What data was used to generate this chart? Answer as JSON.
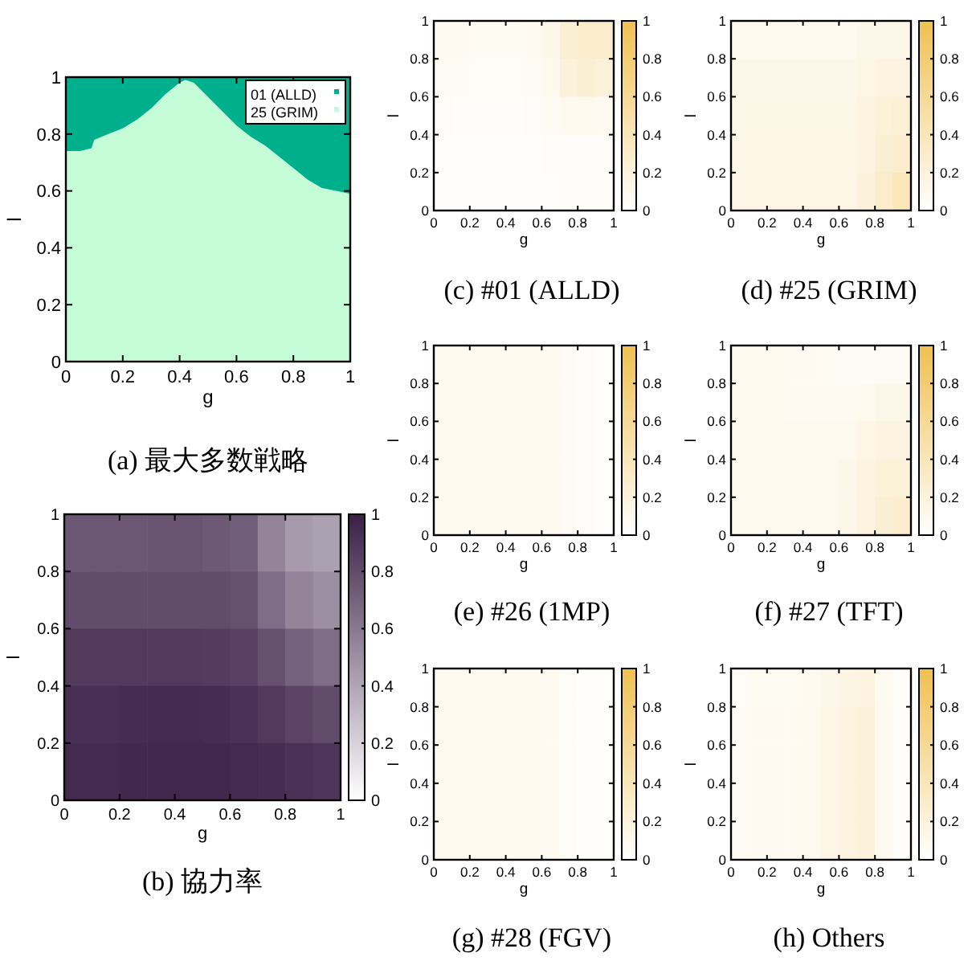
{
  "chart_data": [
    {
      "type": "area",
      "stacked": true,
      "title": "(a) 最大多数戦略",
      "xlabel": "g",
      "ylabel": "l",
      "xlim": [
        0,
        1
      ],
      "ylim": [
        0,
        1
      ],
      "xticks": [
        0,
        0.2,
        0.4,
        0.6,
        0.8,
        1
      ],
      "yticks": [
        0,
        0.2,
        0.4,
        0.6,
        0.8,
        1
      ],
      "legend": "top right",
      "x": [
        0,
        0.05,
        0.09,
        0.1,
        0.15,
        0.2,
        0.25,
        0.3,
        0.35,
        0.4,
        0.42,
        0.45,
        0.5,
        0.55,
        0.6,
        0.65,
        0.7,
        0.75,
        0.8,
        0.85,
        0.9,
        0.95,
        1
      ],
      "series": [
        {
          "name": "25 (GRIM)",
          "color": "#c4fcd8",
          "values": [
            0.74,
            0.74,
            0.75,
            0.78,
            0.8,
            0.82,
            0.85,
            0.89,
            0.94,
            0.98,
            0.99,
            0.98,
            0.93,
            0.88,
            0.83,
            0.79,
            0.76,
            0.72,
            0.68,
            0.64,
            0.61,
            0.6,
            0.59
          ]
        },
        {
          "name": "01 (ALLD)",
          "color": "#00b08c",
          "values": [
            0.26,
            0.26,
            0.25,
            0.22,
            0.2,
            0.18,
            0.15,
            0.11,
            0.06,
            0.02,
            0.01,
            0.02,
            0.07,
            0.12,
            0.17,
            0.21,
            0.24,
            0.28,
            0.32,
            0.36,
            0.39,
            0.4,
            0.41
          ]
        }
      ]
    },
    {
      "type": "heatmap",
      "title": "(b) 協力率",
      "xlabel": "g",
      "ylabel": "l",
      "xlim": [
        0,
        1
      ],
      "ylim": [
        0,
        1
      ],
      "xticks": [
        0,
        0.2,
        0.4,
        0.6,
        0.8,
        1
      ],
      "yticks": [
        0,
        0.2,
        0.4,
        0.6,
        0.8,
        1
      ],
      "clim": [
        0,
        1
      ],
      "cticks": [
        0,
        0.2,
        0.4,
        0.6,
        0.8,
        1
      ],
      "colors": [
        "#ffffff",
        "#3a1f46"
      ],
      "cells": [
        [
          0.75,
          0.75,
          0.75,
          0.76,
          0.76,
          0.74,
          0.72,
          0.55,
          0.45,
          0.42
        ],
        [
          0.8,
          0.8,
          0.8,
          0.8,
          0.8,
          0.8,
          0.78,
          0.65,
          0.55,
          0.5
        ],
        [
          0.88,
          0.88,
          0.88,
          0.88,
          0.88,
          0.87,
          0.85,
          0.78,
          0.7,
          0.65
        ],
        [
          0.93,
          0.93,
          0.94,
          0.95,
          0.95,
          0.94,
          0.92,
          0.88,
          0.84,
          0.8
        ],
        [
          0.95,
          0.95,
          0.96,
          0.96,
          0.96,
          0.96,
          0.95,
          0.94,
          0.92,
          0.9
        ]
      ]
    },
    {
      "type": "heatmap",
      "title": "(c) #01 (ALLD)",
      "xlabel": "g",
      "ylabel": "l",
      "xlim": [
        0,
        1
      ],
      "ylim": [
        0,
        1
      ],
      "xticks": [
        0,
        0.2,
        0.4,
        0.6,
        0.8,
        1
      ],
      "yticks": [
        0,
        0.2,
        0.4,
        0.6,
        0.8,
        1
      ],
      "clim": [
        0,
        1
      ],
      "cticks": [
        0,
        0.2,
        0.4,
        0.6,
        0.8,
        1
      ],
      "colors": [
        "#ffffff",
        "#f0c050"
      ],
      "cells": [
        [
          0.08,
          0.08,
          0.07,
          0.07,
          0.07,
          0.08,
          0.12,
          0.25,
          0.3,
          0.3
        ],
        [
          0.06,
          0.06,
          0.05,
          0.05,
          0.05,
          0.06,
          0.1,
          0.2,
          0.25,
          0.22
        ],
        [
          0.04,
          0.03,
          0.03,
          0.03,
          0.03,
          0.04,
          0.06,
          0.1,
          0.1,
          0.08
        ],
        [
          0.02,
          0.02,
          0.02,
          0.02,
          0.02,
          0.02,
          0.03,
          0.04,
          0.04,
          0.04
        ],
        [
          0.02,
          0.02,
          0.02,
          0.02,
          0.02,
          0.02,
          0.02,
          0.03,
          0.03,
          0.03
        ]
      ]
    },
    {
      "type": "heatmap",
      "title": "(d) #25 (GRIM)",
      "xlabel": "g",
      "ylabel": "l",
      "xlim": [
        0,
        1
      ],
      "ylim": [
        0,
        1
      ],
      "xticks": [
        0,
        0.2,
        0.4,
        0.6,
        0.8,
        1
      ],
      "yticks": [
        0,
        0.2,
        0.4,
        0.6,
        0.8,
        1
      ],
      "clim": [
        0,
        1
      ],
      "cticks": [
        0,
        0.2,
        0.4,
        0.6,
        0.8,
        1
      ],
      "colors": [
        "#ffffff",
        "#f0c050"
      ],
      "cells": [
        [
          0.1,
          0.1,
          0.1,
          0.1,
          0.1,
          0.1,
          0.1,
          0.12,
          0.12,
          0.12
        ],
        [
          0.12,
          0.12,
          0.12,
          0.12,
          0.12,
          0.12,
          0.12,
          0.15,
          0.18,
          0.18
        ],
        [
          0.13,
          0.13,
          0.13,
          0.13,
          0.13,
          0.13,
          0.13,
          0.17,
          0.22,
          0.24
        ],
        [
          0.14,
          0.14,
          0.14,
          0.14,
          0.14,
          0.14,
          0.15,
          0.18,
          0.25,
          0.28
        ],
        [
          0.14,
          0.14,
          0.14,
          0.14,
          0.14,
          0.14,
          0.15,
          0.2,
          0.3,
          0.4
        ]
      ]
    },
    {
      "type": "heatmap",
      "title": "(e) #26 (1MP)",
      "xlabel": "g",
      "ylabel": "l",
      "xlim": [
        0,
        1
      ],
      "ylim": [
        0,
        1
      ],
      "xticks": [
        0,
        0.2,
        0.4,
        0.6,
        0.8,
        1
      ],
      "yticks": [
        0,
        0.2,
        0.4,
        0.6,
        0.8,
        1
      ],
      "clim": [
        0,
        1
      ],
      "cticks": [
        0,
        0.2,
        0.4,
        0.6,
        0.8,
        1
      ],
      "colors": [
        "#ffffff",
        "#f0c050"
      ],
      "cells": [
        [
          0.1,
          0.1,
          0.1,
          0.1,
          0.1,
          0.1,
          0.09,
          0.06,
          0.03,
          0.02
        ],
        [
          0.1,
          0.1,
          0.1,
          0.1,
          0.1,
          0.1,
          0.09,
          0.06,
          0.03,
          0.02
        ],
        [
          0.1,
          0.1,
          0.1,
          0.1,
          0.1,
          0.1,
          0.09,
          0.06,
          0.03,
          0.02
        ],
        [
          0.1,
          0.1,
          0.1,
          0.1,
          0.1,
          0.1,
          0.09,
          0.06,
          0.03,
          0.02
        ],
        [
          0.1,
          0.1,
          0.1,
          0.1,
          0.1,
          0.1,
          0.09,
          0.06,
          0.03,
          0.02
        ]
      ]
    },
    {
      "type": "heatmap",
      "title": "(f) #27 (TFT)",
      "xlabel": "g",
      "ylabel": "l",
      "xlim": [
        0,
        1
      ],
      "ylim": [
        0,
        1
      ],
      "xticks": [
        0,
        0.2,
        0.4,
        0.6,
        0.8,
        1
      ],
      "yticks": [
        0,
        0.2,
        0.4,
        0.6,
        0.8,
        1
      ],
      "clim": [
        0,
        1
      ],
      "cticks": [
        0,
        0.2,
        0.4,
        0.6,
        0.8,
        1
      ],
      "colors": [
        "#ffffff",
        "#f0c050"
      ],
      "cells": [
        [
          0.1,
          0.1,
          0.09,
          0.08,
          0.08,
          0.07,
          0.06,
          0.06,
          0.06,
          0.06
        ],
        [
          0.1,
          0.1,
          0.09,
          0.08,
          0.08,
          0.08,
          0.08,
          0.1,
          0.12,
          0.12
        ],
        [
          0.1,
          0.1,
          0.1,
          0.1,
          0.1,
          0.1,
          0.1,
          0.14,
          0.18,
          0.18
        ],
        [
          0.1,
          0.1,
          0.1,
          0.1,
          0.1,
          0.1,
          0.12,
          0.17,
          0.22,
          0.22
        ],
        [
          0.1,
          0.1,
          0.1,
          0.1,
          0.1,
          0.1,
          0.12,
          0.18,
          0.25,
          0.28
        ]
      ]
    },
    {
      "type": "heatmap",
      "title": "(g) #28 (FGV)",
      "xlabel": "g",
      "ylabel": "l",
      "xlim": [
        0,
        1
      ],
      "ylim": [
        0,
        1
      ],
      "xticks": [
        0,
        0.2,
        0.4,
        0.6,
        0.8,
        1
      ],
      "yticks": [
        0,
        0.2,
        0.4,
        0.6,
        0.8,
        1
      ],
      "clim": [
        0,
        1
      ],
      "cticks": [
        0,
        0.2,
        0.4,
        0.6,
        0.8,
        1
      ],
      "colors": [
        "#ffffff",
        "#f0c050"
      ],
      "cells": [
        [
          0.1,
          0.1,
          0.1,
          0.1,
          0.1,
          0.1,
          0.08,
          0.05,
          0.02,
          0.02
        ],
        [
          0.1,
          0.1,
          0.1,
          0.1,
          0.1,
          0.1,
          0.08,
          0.05,
          0.02,
          0.02
        ],
        [
          0.1,
          0.1,
          0.1,
          0.1,
          0.1,
          0.1,
          0.08,
          0.05,
          0.02,
          0.02
        ],
        [
          0.1,
          0.1,
          0.1,
          0.1,
          0.1,
          0.1,
          0.08,
          0.05,
          0.02,
          0.02
        ],
        [
          0.1,
          0.1,
          0.1,
          0.1,
          0.1,
          0.1,
          0.08,
          0.05,
          0.02,
          0.02
        ]
      ]
    },
    {
      "type": "heatmap",
      "title": "(h) Others",
      "xlabel": "g",
      "ylabel": "l",
      "xlim": [
        0,
        1
      ],
      "ylim": [
        0,
        1
      ],
      "xticks": [
        0,
        0.2,
        0.4,
        0.6,
        0.8,
        1
      ],
      "yticks": [
        0,
        0.2,
        0.4,
        0.6,
        0.8,
        1
      ],
      "clim": [
        0,
        1
      ],
      "cticks": [
        0,
        0.2,
        0.4,
        0.6,
        0.8,
        1
      ],
      "colors": [
        "#ffffff",
        "#f0c050"
      ],
      "cells": [
        [
          0.05,
          0.07,
          0.07,
          0.07,
          0.09,
          0.12,
          0.16,
          0.18,
          0.08,
          0.03
        ],
        [
          0.06,
          0.08,
          0.08,
          0.08,
          0.1,
          0.14,
          0.18,
          0.2,
          0.1,
          0.04
        ],
        [
          0.06,
          0.08,
          0.08,
          0.08,
          0.1,
          0.14,
          0.18,
          0.2,
          0.1,
          0.04
        ],
        [
          0.06,
          0.08,
          0.08,
          0.08,
          0.1,
          0.14,
          0.18,
          0.2,
          0.1,
          0.04
        ],
        [
          0.06,
          0.08,
          0.08,
          0.08,
          0.1,
          0.14,
          0.18,
          0.2,
          0.1,
          0.04
        ]
      ]
    }
  ]
}
